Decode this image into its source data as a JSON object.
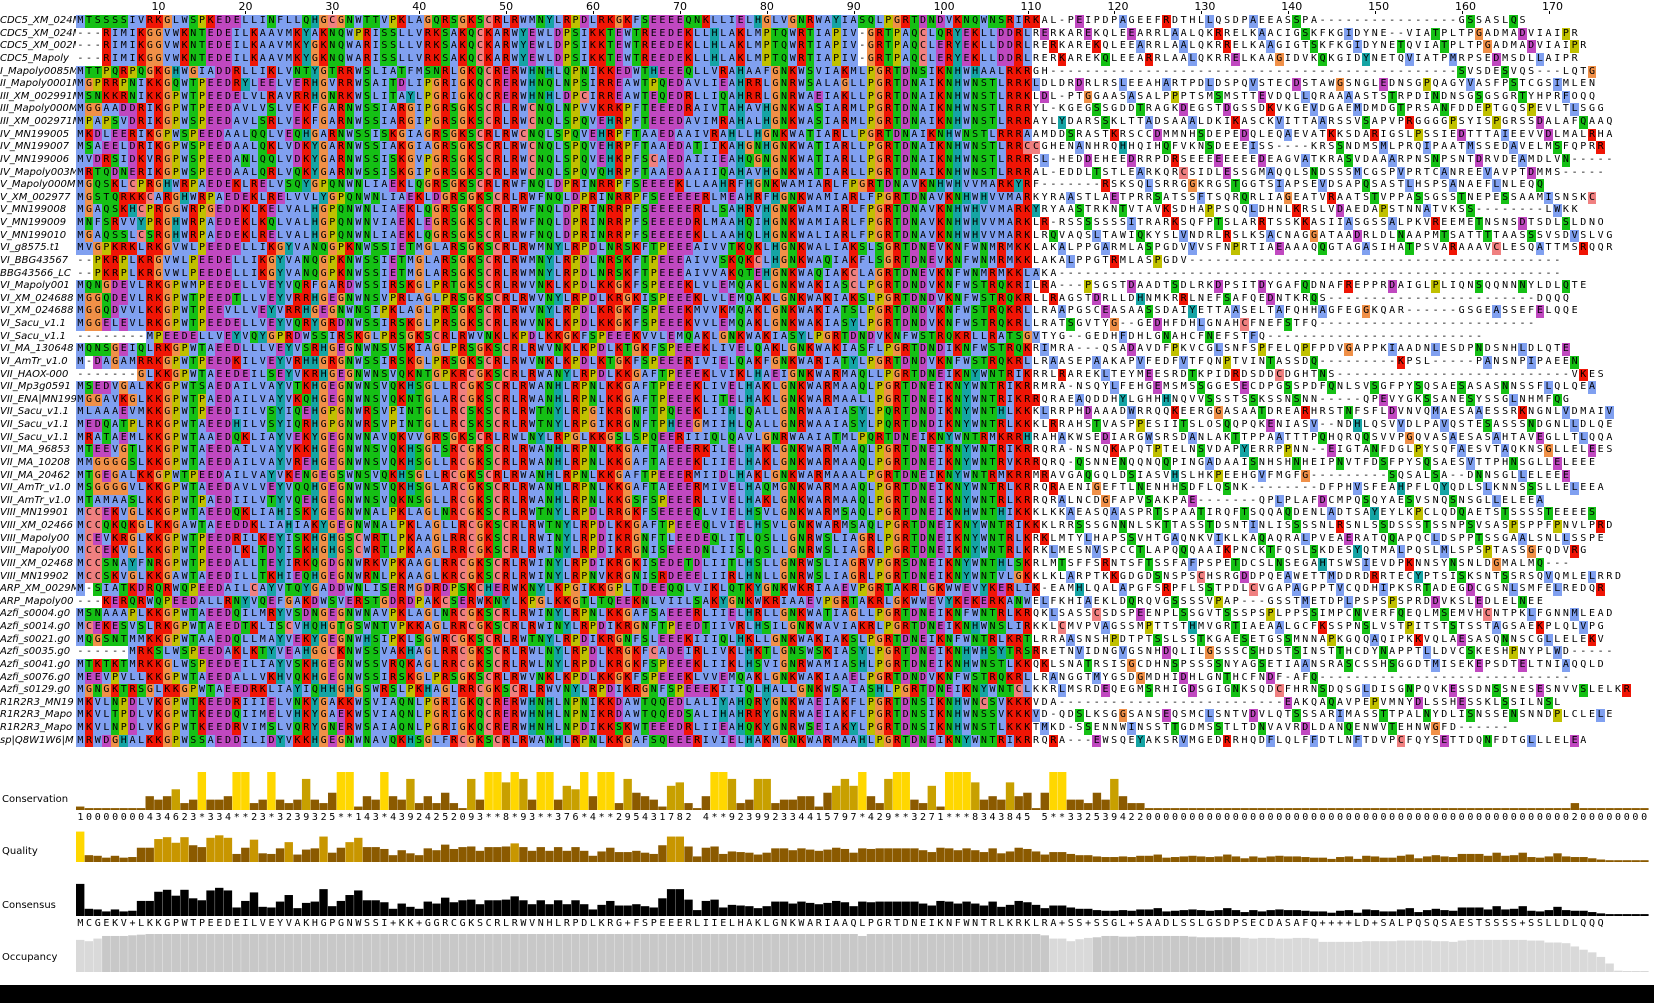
{
  "ruler": [
    10,
    20,
    30,
    40,
    50,
    60,
    70,
    80,
    90,
    100,
    110,
    120,
    130,
    140,
    150,
    160,
    170
  ],
  "names": [
    "CDC5_XM_024M",
    "CDC5_XM_024M",
    "CDC5_XM_002M",
    "CDC5_Mapoly",
    "I_Mapoly0085M",
    "II_Mapoly0001M",
    "III_XM_002991M",
    "III_Mapoly000M",
    "III_XM_002971M",
    "IV_MN199005",
    "IV_MN199007",
    "IV_MN199006",
    "IV_Mapoly003M",
    "V_Mapoly000M",
    "V_XM_002977",
    "V_MN199008",
    "V_MN199009",
    "V_MN199010",
    "VI_g8575.t1",
    "VI_BBG43567",
    "BBG43566_LC",
    "VI_Mapoly001",
    "VI_XM_024688",
    "VI_XM_024688",
    "VI_Sacu_v1.1",
    "VI_Sacu_v1.1",
    "VI_MA_130648",
    "VI_AmTr_v1.0",
    "VII_HAOX-000",
    "VII_Mp3g0591",
    "VII_ENA|MN199",
    "VII_Sacu_v1.1",
    "VII_Sacu_v1.1",
    "VII_Sacu_v1.1",
    "VII_MA_96853",
    "VII_MA_10208",
    "VII_MA_20462",
    "VII_AmTr_v1.0",
    "VII_AmTr_v1.0",
    "VIII_MN19901",
    "VIII_XM_02466",
    "VIII_Mapoly00",
    "VIII_Mapoly00",
    "VIII_XM_02468",
    "VIII_MN19902",
    "ARP_XM_0029M",
    "ARP_Mapoly00",
    "Azfi_s0004.g0",
    "Azfi_s0014.g0",
    "Azfi_s0021.g0",
    "Azfi_s0035.g0",
    "Azfi_s0041.g0",
    "Azfi_s0076.g0",
    "Azfi_s0129.g0",
    "R1R2R3_MN19",
    "R1R2R3_Mapo",
    "R1R2R3_Mapo",
    "sp|Q8W1W6|M"
  ],
  "rows": [
    "MTSSSSIVRKGLWSPKEDELLINFLLQHGCGNWTTVPKLAGQRSGKSCRLRWMNYLRPDLRKGKFSEEEEQNKLLIELHGLVGNRWAYIASQLPGRTDNDVKNQWNSRIRKAL-PEIPDPAGEEFRDTHLLQSDPAEEASSPA----------------GSSASLQS",
    "---RIMIKGGVWKNTEDEILKAAVMKYAKNQWPRISSLLVRKSAKQCKARWYEWLDPSIKKTEWTREEDEKLLHLAKLMPTQWRTIAPIV-GRTPAQCLQRYEKLLDDRLRERKAREKQLEEARRLAALQKRRELKAACIGSKFKGIDYNE--VIATPLTPGADMADVIAIPR",
    "---RIMIKGGVWKNTEDEILKAAVMKYGKNQWARISSLLVRKSAKQCKARWYEWLDPSIKKTEWTREEDEKLLHLAKLMPTQWRTIAPIV-GRTPAQCLERYEKLLDDRLRERKAREKQLEEARRLAALQKRRELKAAGIGTSKFKGIDYNETQVIATPLTPGADMADVIAIPR",
    "---RIMIKGGVWKNTEDEILKAAVMKYGKNQWARISSLLVRKSAKQCKARWYEWLDPSIKKTEWTREEDEKLLHLAKLMPTQWRTIAPIV-GRTPAQCLERYEKLLDDRLRERKAREKQLEEARRLAALQKRRELKAAGIDVKQKGIDYNETQVIATPMRPSEDMSDLLAIPR",
    "MTTPQRPQGKGHWGIADDRLLIKLVNTYGTRRWSLIATFMSNRLGKQCRERWHNHLQPNIKKEDWTHEEEQLLVRAHAAFGNKWSVIAKMLPGRTDNSIKNHWHAALRKRGH-----------------------------------------------SVSDESVQS---LQTG",
    "MGPRRPNIKKGQWTPEEDRYLEELVERHGVRRWSAITDLIPGRIGKQCRERWHNQLNPSIRREAWTPQEDAVLIEAHRRLGNRWSALAGLLPGRTDNAIKNHWNSTLRRKLDLDRDRLRSLEEAHARTPDLDSPQVSTECDSTAWGSNGLEDNSGPQAGYVASFPSTCGSIMLEN",
    "MSNKKRNIKKGPWTPEEDELVLRAVRRHGNRKWSLITAYLPGRIGKQCRERWHNHLDPCIRREAWTEQEDRLLIQAHRRLGNRWAEIAKLLPGRTDNAIKNHWNSTLRRKLDL-PTGGAASASALPPPTSMSMSTTEVDQLLQRAAAASTSTRPDINDNSGSGSGRTYHPRFOQQ",
    "MGGAADDRIKGPWTPEEDAVLVSLVEKFGARNWSSIARGIPGRSGKSCRLRWCNQLNPVVKRKPFTEEEDRAIVTAHAVHGNKWASIARMLPGRTDNAIKNHWNSTLRRRYL-KGEGSSGDDTRAGKDEGSTDGSSDKVKGEVDGAEMDMDGTPRSANFDDEPTGQSPEVLTLSGG",
    "MPAPSVDRIKGPWSPEEDAVLSRLVEKFGARNWSSIARGIPGRSGKSCRLRWCNQLSPQVEHRPFTEEEDAVIMRAHALHGNKWASIARMLPGRTDNAIKNHWNSTLRRRAYLYDARSSKLTTADSAAALDKIKASCKVITTAARSSVSAPVPRGGGGPSYISPGRSSDALAFQAAQ",
    "MKDLEERIKGPWSPEEDAALQQLVEQHGARNWSSISKGIAGRSGKSCRLRWCNQLSPQVEHRPFTAAEDAAIVRAHLLHGNKWATIARLLPGRTDNAIKNHWNSTLRRRAAMDDSRASTKRSCCDMMNHSDEPEDQLEQAEVATKKSDARIGSLPSSIEDTTTAIEEVVDLMALRHA",
    "MSAEELDRIKGPWSPEEDAALQKLVDKYGARNWSSIAKGIAGRSGKSCRLRWCNQLSPQVEHRPFTAAEDATIIKAHGNHGNKWATIARLLPGRTDNAIKNHWNSTLRRCCGHENANHRQHHQIHQFVKNSDEEEISS----KRSSNDMSMLPRQIPAATMSSEDAVELMSFQPRR",
    "MVDRSIDKVRGPWSPEEDANLQQLVDKYGARNWSSISKGVPGRSGKSCRLRWCNQLSPQVEHKPFSCAEDAIIIEAHQGNGNKWATIARLLPGRTDNAIKNHWNSTLRRRSL-HEDDEHEEDRRPDRSEEEEEEEEDEAGVATKRASVDAAARPNSNPSNTDRVDEAMDLVN-----",
    "MRTQDNERIKGPWSPEEDAALQRLVQKYGARNWSSISKGIPGRSGKSCRLRWCNQLSPQVQHRPFTAAEDAAIIQAHAVHGNKWATIARLLPGRTDNAIKNHWNSTLRRRAL-EDDLTSTLEARKQRCSIDLESSGMAQQLSNDSSSMCGSPVPRTCANREEVAVPTDMMS-----",
    "MGQSKLCPRGHWRPAEDEKLRELVSQYGPQNWNLIAEKLQGRSGKSCRLRWFNQLDPRINRRPFSEEEEKLLAAHRFHGNKWAMIARLFPGRTDNAVKNHWHVVMARKYRF-------RSKSQLSRRGGKRGSTGGTSIAPSEVDSAPQSASTLHSPSANAEFLNLEQQ",
    "MGSTQRKKCARGHWRPAEDEKLRELVVLYGPQNWNLIAEKLDGRSGKSCRLRWFNQLDPRINRRPFSEEEEERLMEAHRFHGNKWAMIARLFPGRTDNAVKNHWHVVMARKYRAASTLAETPRRSATSSFTSQRQRLIAGEATVRAATSTVPPASSGSSTNEPESSAAMISNSKC",
    "MGAQSKHCPRGGWRPGEDDKLKELVALHGPQNWNLIAEKLQGRSGKSCRLRWFNQLDPRINRRPFSEEEEERLLSAHRVHGNKWAMIARLFPGRTDNAVKNHWHVVMARKYRYAASTRKNTVTAVKSDHAPPSQQLDHNLKRSLVDAEDAPSTNNATVKSS--------LWKK",
    "MNFSRVVYPRGHWRPAEDEKLKQLVALHGPQNWNVIAEKLEGRSGKSCRLRWFNQLDPRINRRPFSEEEEDRLMAAHQIHGNKWAMIARLFPGRTDNAVKNHWHVVMARKLR-RSSSSSSSITRARKSQFPTSLARRTSSKKASIIASGSSALPKVREEMETNSNSDTSDLSLDNO",
    "MGAQSSLCSRGHWRPAEDEKLRELVALHGPQNWNLIAEKLQGRSGKSCRLRWFNQLDPRINRRPFSEEEEEKLLAAHQLHGNKWALIARLFPGRTDNAVKNHWHVVMARKLRQVAQSLTAWIQKYSLVNDRLRSLKSACNAGGATAADRLDLNAAPMTSATTTTAASSSVSDVSLVG",
    "MVGPKRKLRKGVWLPEEDELLIKGYVANQGPKNWSSIETMGLARSGKSCRLRWMNYLRPDLNRSKFTPEEEAIVVTKQKLHGNKWALIAKSLSGRTDNEVKNFWNMRMKKLAKALPPGARMLASPGDVVVSFNPRTIAEAAAQQGTAGASIHATPSVARAAAVCLESQATTMSRQQR",
    "--PKRPLKRGVWLPEEDELLIKGYVANQGPKNWSSIETMGLARSGKSCRLRWMNYLRPDLNRSKFTPEEEAIVVSKQKCLHGNKWAQIAKFLSGRTDNEVKNFWNMRMKKLAKALPPGTRMLASPGDV-------------------------------------------",
    "--PKRPLKRGVWLPEEDELLIKGYVANQGPKNWSSIETMGLARSGKSCRLRWMNYLRPDLNRSKFTPEEEAIVVAKQTEHGNKWAQIAKCLAGRTDNEVKNFWNMRMKKLAKA----------------------------------------------------------",
    "MQNGDEVLRKGPWMPEEDELLVEYVQRFGARDWSSIRSKGLPRTGKSCRLRWVNKLKPDLKKGKFSPEEEKLVLEMQAKLGNKWAKIASCLPGRTDNDVKNFWSTRQKRILRA---PSGSTDAADTSDLRKDPSITDYGAFQDNAFREPPRDAIGLPLIQNSQQNNNYLDLQTE",
    "MGGQDEVLRKGPWTPEEDTLLVEYVRRHGEGNWNSVPRLAGLPRSGKSCRLRWVNYLRPDLKRGKISPEEEKLVLEMQAKLGNKWAKIAKSLPGRTDNDVKNFWSTRQKRLLRAGSTDRLLDHNMKRRLNEFSAFQEDNTKRQS------------------------DQQQ",
    "MGGQDVVLKKGPWTPEEVLLVEYVRRHGEGNWNSIPKLAGLPRSGKSCRLRWVNYLRPDLKRGKFSPEEEKMVVKMQAKLGNKWAKIATSLPGRTDNDVKNFWSTRQKRLLRAAPGSCEASAASSDAIYETTAASELTAFQHHAGFEGGKQAR------GSGEASSEFELQQE",
    "MGGELEVLRKGPWTPEEDELLVEYVQRYGRDNWSSIRSKGLPRSGKSCRLRWVNKLKPDLKKGKFSPEEEKVVLEMQAKLGNKWAKIASYLPGRTDNDVKNFWSTRQKRLLRATSGVTYG--GEDHFDHLGNAHCFNEFSTFQ-------------------------",
    "--------MPEEDELLVEYVQYGPRDWSSIRSKGLPRSGKSCRLRWVNKLKPDLKKGKFSPEEEKVVLEMQAKLGNKWAKIASYLPGRTDNDVKNFWSTRQKRLLRATSGVTYG--GEDHFDHLGNAHCFNEFSTFQ-------------------------",
    "MQNSGEIQLRKGPWTAEEDLLLVEYVSRHGEGNWNSVSKIAGLPRSGKSCRLRWVNKLKPDLKTGKFSPEEEKLIVELQAKLGNKWAKIASFLPGRTDNDIKNFWSTRQKRIMRA---QSADAVDFPKVCGLSNFSPFELQPFPDVGAPPKIAADNLESDPNDSNHLDLQTE",
    "M-DAGAMRRKGPWTPEEDKILVEYVRHHGRGNWSSIRSKGLPRSGKSCRLRWVNKLKPDLKTGKFSPEEERIVIELQAKFGNKWARIATYLPGRTDNDVKNFWSTRQKRLLRAASEPAAKAPVFEDFVTFQNPTVINTASSDQ---------KPSL-----PANSNPIPAEEN",
    "-------GLKKGPWTAEEDEILSEYVKRHGEGNWNSVQKNTGPKRCGKSCRLRWANYLRPDLKKGAFTPEEEKLVIKLHAEIGNKWARMAQLLPGRTDNEIKNYWNTRIKRRLRAREKLTEYMEESRDTKPIDRDSDDCDGHTNS---------------------------VKES",
    "MSEDVGALKKGPWTSAEDAILVAYVTKHGEGNWNSVQKHSGLLRCGKSCRLRWANHLRPNLKKGAFTPEEEKLIVELHAKLGNKWARMAAQLPGRTDNEIKNYWNTRIKRRMRA-NSQYLFEHGEMSMSSGGESECDPGSSPDFQNLSVSGFPYSQSAESASASNNSSFLQLQEA",
    "MGGAVKGLKKGPWTPAEDAILVAYVKQHGEGNWNSVQKNTGLARCGKSCRLRWANHLRPNLKKGAFTPEEEKLITELHAKLGNKWARMAALLPGRTDNEIKNYWNTRIKRRQRAEAQDDHYLGHHHNQVVSSSTSSKSSNSNN-----QPEVYGKSSANESYSSGLNHMFQG",
    "MLAAAEVMKKGPWTPEEDIILVSYIQEHGPGNWRSVPINTGLLRCSKSCRLRWTNYLRPGIKRGNFTPQEEKLIIHLQALLGNRWAAIASYLPQRTDNDIKNYWNTHLKKKLRRPHDAAADWRRQQKEERGGASAATDREARHRSTNFSFLDVNVQMAESAAESSRKNGNLVDMAIV",
    "MEDQATPLRKGPWTAEEDHILVSYIQRHGPGNWRSVPINTGLLRCSKSCRLRWTNYLRPGIKRGNFTPHEEGMIIHLQALLGNRWAAIASYLPQRTDNDIKNYWNTRLKKKLRRAHSTVASPPESIITSLOSQQPQKENIASV--NDHLQSVVDLPAVQSTESASSSNDGNLLDLQE",
    "MRATAEMLKKGPWTAAEDQKLIAYVEKYGEGNWNAVQKVVGRSGKSCRLRWLNYLRPGLKKGSLSPQEERIIIQLQAVLGNRWAAIATMLPQRTDNEIKNYWNTRMKRRHRAHAKWSEDIARGWSRSDANLAKTTPPAATTTPQHQRQQSVVPGQVASAESASAHTAVEGLLTLQQA",
    "MTEEVGTLKKGPWTAEEDAILVAYVKKHGEGNWNSVQKHSGLSRCGKSCRLRWANHLRPNLKKGAFTAEEERKILELHAKLGNKWARMAAQLPGRTDNEIKNYWNTRIKRRQRA-NSNQKAPQTPTELNSVDAPYERRPPNN--EIGTANFDGLPYSQFAESVTAQKNSGLLELEES",
    "MMGGGGSLKKGPWTAEEDAILVAYVREHGEGNWNSVQKHSGLLRCGKSCRLRWANHLRPNLKKGAFTAEEEKLIIELHAKLGNKWARMAAQLPGRTDNEIKNYWNTRVKRRQRQ-QSNNENQQNQQPINGADAAISNHSHNHEIPNVTFDSFPYSQSAESVTTPHNSGLLELEEE",
    "MTGEGALKKGPWTPEEDAILVAYVKENGEGSWNSVQKHSGLLRCGKSCRLRWANHLRPNLKKGAFTPEEERMIIDLHAKLGNKWARMAAALPGRTDNEIKNYWNTRMKRRMRAVGAQGQLDSIASVHSLHKPEEHGVFMGFG---------SQSALSA--DNNSGLLELEEE",
    "MSGGGGVLKKGPWTAEEDAVLVEYVQQHGEGNWNSVQKHSGLARCGKSCRLRWANHLRPNLKKGAFTAEEERMIVELHAQMGNKWARMAAQLPGRTDNEIKNYWNTRLKRRQRAENIGEFTLNENHHSDFLQSNK--------DFPHVSFEAHPFLQYQDLSLKNNSSSLLELEEA",
    "MTAMAASLKKGPWTPAEDIILVTYVQEHGEGNWNSVQKNSGLLRCGKSCRLRWANHLRPNLKKGSFSPEEERLIVELHAKLGNKWARMAAQLPGRTDNEIKNYWNTRLKRRQRALNCDGFAPVSAKPAE-------QPLPLAFDCMPQSQYAESVSNQSNSGLLELEEA",
    "MCCEKVGLKKGPWTAEEDQKLIAHISKYGEGNWNALPKLAGLNRCGKSCRLRWTNYLRPDLRRGKFSEEEEQLVIELHSVLGNKWARMSAQLPGRTDNEIKNHWNTHIKKKLKKAEASQAASPRTSPAATIRQFTSQQAQDENLADTSAYEYLKPCLQDQAETSTSSSSTEEEES",
    "MCCQKQKGLKKGAWTAEEDDKLIAHIAKYGEGNWNALPKLAGLLRCGKSCRLRWTNYLRPDLKKGAFTPEEEQLVIELHSVLGNKWARMSAQLPGRTDNEIKNYWNTRIKKKLRRSSSGNNNLSKTTASSTDSNTINLISSSSNLRSNLSSDSSSTSSNPSVSASPSPPFPNVLPRD",
    "MCEVKRGLKKGPWTPEEDRILKEYISKHGHGSCWRTLPKAAGLRRCGKSCRLRWINYLRPDIKRGNFTLEEDEQLITLQSLLGNRWSLIAGRLPGRTDNEIKNYWNTRLKRKLMTYLHAPSSVHTGAQNKVIKLKAQAQRALPVEAERATQQAPQCLDSPPTSSGAALSNLLSSPE",
    "MCCEKVGLKKGPWTPEEDLKLTDYISKHGHGSCWRTLPKAAGLRRCGKSCRLRWINYLRPDIKRGNISEEEDNLIISLQSLLGNRWSLIAGRLPGRTDNEIKNYWNTRLKRKLMESNVSPCCTLAPQQQAAIKPNCKTFQSLSKDESYQTMALPQSLMLSPSPTASSGFQDVRG",
    "MCCSNAYFNRGPWTPEEDALLTEYIRKQGDGNWRKVPKAAGLRRCGKSCRLRWINYLRPDIKRGKISEDETDLIITLHSLLGNRWSLIAGRVPGRSDNEIKNYWNTHLSKRLMTSFFSRNTSFTSSFAFPSPETDCSLNSEGAHTSWSIEVDPKNNSYNSNLDGMALMQ---",
    "MCCSKVGLKKGAWTAEEDILLTKHIEQHGEGNWRNLPKAAGLKRCGKSCRLRWINYLRPNVKRGNISRDEEELIIRLHNLLGNRWSLIAGRLPGRTDNEIKNYWNTVLGKKLKLARPTKKGDGDSNSPSCHSRGDDPQEAWETTMDDRDRRTECYPTSISKSNTSSRSQVQMLELRRD",
    "M-SIATKDRQRWQPEEDAILCAYVTQYGADDWNLISERMGDRDPSKCHERWKNYLKPGIKKGPLTDEEQQLVIKLQTKYGNKWKRIAAEVPGRTAKRLGKWWEVYKERLIK-EAMHLQALAPGFSRPFLSSTPDLCVGAPAGPPTVCQDHIPKSRTADEGDCGSNLSMFELREDQR",
    "---KERQRWQPEEDALLRNYVQEFGAKDWSVERSTGDRDPAKCSERWKNYLKPGLKKGTLTQEEKNLVIILSAKYGNKWKRIAAEVPGRTAKRLGKWWEVYKEKERKANWELFKHIAEKLDQRQVGSSSSVPAP---GSSTMETDPLPSPSPSPRDDVKSLEDLELNEE",
    "MSNAAAPLKKGPWTAEEDQILMRYVSDNGEGNWNAVPKLAGLNRCGKSCRLRWINYLRPNLKKGAFSAEEERLIIELHRLLGNKWATIAGLLPGRTDNEIKNFWNTRLKRQKLSASSCSDSPEENPLSSGVTSSSPSPLPPSSIMPCNVERFQEQLMSEMVHCNTPKLFGNNMLEAD",
    "MCEKESVSLRKGPWTAEEDTKLISCVHQHGTGSWNTVPKKAGLRRCGKSCRLRWINYLRPDIKRGNFTPEEDTIIVRLHSILGNKWAVIAKRLPGRTDNEIKNHWNSLIRKKLCMVPVAGSSMPTTSTHMVGRTIAEAALGCFKSSPNSLVSTPITSTSTSSTAGSAEKPLQLVPG",
    "MQGSNTMMKKGPWTAAEDQLLMAYVEKYGEGNWHSIPKLSGWRCGKSCRLRWTNYLRPDIKRGNFSLEEEKIIIQLHKLLGNKWAKIAKSLPGRTDNEIKNFWNTRLKRTLRRAASNSHPDTPTSSLSSTKGAESETGSSMNNAPKGQQAQIPKKVQLAESASQNNSCGLLELEKV",
    "------MRKSLWSPEEDAKLKTYVEAHGGCKNWSSVAKHAGLRRCGKSCRLRWLNYLRPDLKRGKFCADEIRLIVKLHKTLGNSWSKIASYLPGRTDNEIKNHWHSYTRSRRETNVIDNGVGSNHDQLILGSSSCSHDSTSINSTTHCDYNAPPTLLDVCSKESHPNYPLWD-----",
    "MTKTKTMRKKGLWSPEEDEILIAYVSKHGEGNWSSVRQKAGLRRCGKSCRLRWLNYLRPDLKRGKFSPEEEKLIIKLHSVIGNRWAMIASHLPGRTDNEIKNHWNSTLKKQKLSNATRSISGCDHNSPSSSSNYAGSETIAANSRASCSSHSGGDTMISEKEPSDTELTNIAQQLD",
    "MEEVPVLLKKGPWTAEEDALLVKHVQKHGEGNWSSIRSKGLPRSGKSCRLRWVNKLKPDLKKGKFSPEEEKLVVEMQAKLGNKWAKIAAELPGRTDNDVKNFWSTRQKRLLRANGGTMYGSDGMDHIDHLGNTHCFNDF-AFQ-----------------------------",
    "MGNGKTRSGLKKGPWTAEEDRKLIAYIQHHGHGSWRSLPKHAGLRRCGKSCRLRWVNYLRPDIKRGNFSPEEEKIIIQLHALLGNKWSAIASHLPGRTDNEIKNYWNTCLKKRLMSRDEQEGMSRHIGDSGIGNKSQDCFHRNSDQSGLDISGNPQVKESSDNSSNESESNVVSLELKR",
    "MKVLNPDLVKGPWTKEEDRIIIELVNKYGAKKWSVIAQNLPGRIGKQCRERWHNHLNPNIKKDAWTQQEDLALIYAHQRYGNKWAEIAKFLPGRTDNSIKNHWNCSVKKKVDA--------------------------EAKQAQAVPEPVMNYDLSSHESSKLSSILNSL",
    "MKVLTPDLVKGPWTKEEDQIIMELVHKYGAEKWSVIAQNLPGRIGKQCRERWHNHLNPNIKRDAWTQQEDSALIHAHRRYGNRWAEIAKFLPGRTDNSIKNHWNSSVKKKVD-QDSLKSGGSANSEQSMCLSNTVDVLQTSSSARIMASSTTPALNYDLISNSSENSNNDPLCLELE",
    "MKVLNPDLVKGPWTKEEDRVIMSLVQRYGNERWSAIAQNLPGRIGKQCRERWHNHLNPDIKKSKWTEEEDRLIIEAHQKYGNRWSEIAKYLPGRTDNSIKNHWNSTLKKKTMKD-SSENNWINSSTTGDMSSTLTDNVAVRDLDANQENWVTEHNWGFD------",
    "MRWDGHALKKGPWSSAEDDILIDYVKKHGEGNWNAVQKHSGLFRCGKSCRLRWANHLRPNLKKGAFSQEEERIVIELHAKMGNKWARMAAHLPGRTDNEIKNYWNTRIKRRQRA---EWSQEYAKSRVMGEDRRHQDFLQLFFDTLNFTDVPCFQYSETTDQNFDTGLLLELEA"
  ],
  "annotations": {
    "labels": [
      "Conservation",
      "Quality",
      "Consensus",
      "Occupancy"
    ],
    "conservation_line": "10000000434623*334**23*3239325**143*43924252093**8*93**376*4**295431782 4**923992334415797*429**3271***8343845 5**332539422000000000000000000000000000000000000000000000000020000000000000001000000",
    "consensus": "MCGEKV+LKKGPWTPEEDEILVEYVAKHGPGNWSSI+KK+GGRCGKSCRLRWVNHLRPDLKRG+FSPEEERLIIELHAKLGNKWARIAAQLPGRTDNEIKNFWNTRLKRKLRA+SS+SSGL+SAADLSSLGSDPSECDASAFQ++++LD+SALPQSQSAESTSSSS+SSLLDLQQQ"
  },
  "colors": {
    "hydrophobic": "#80a0f0",
    "positive": "#f01505",
    "negative": "#c048c0",
    "polar": "#15c015",
    "cysteine": "#f08080",
    "glycine": "#f09048",
    "proline": "#c0c000",
    "aromatic": "#15a4a4",
    "conservation_bar": "#ffd700",
    "quality_bar": "#8b5a00",
    "consensus_bar": "#000000",
    "occupancy_bar": "#c8c8c8"
  }
}
